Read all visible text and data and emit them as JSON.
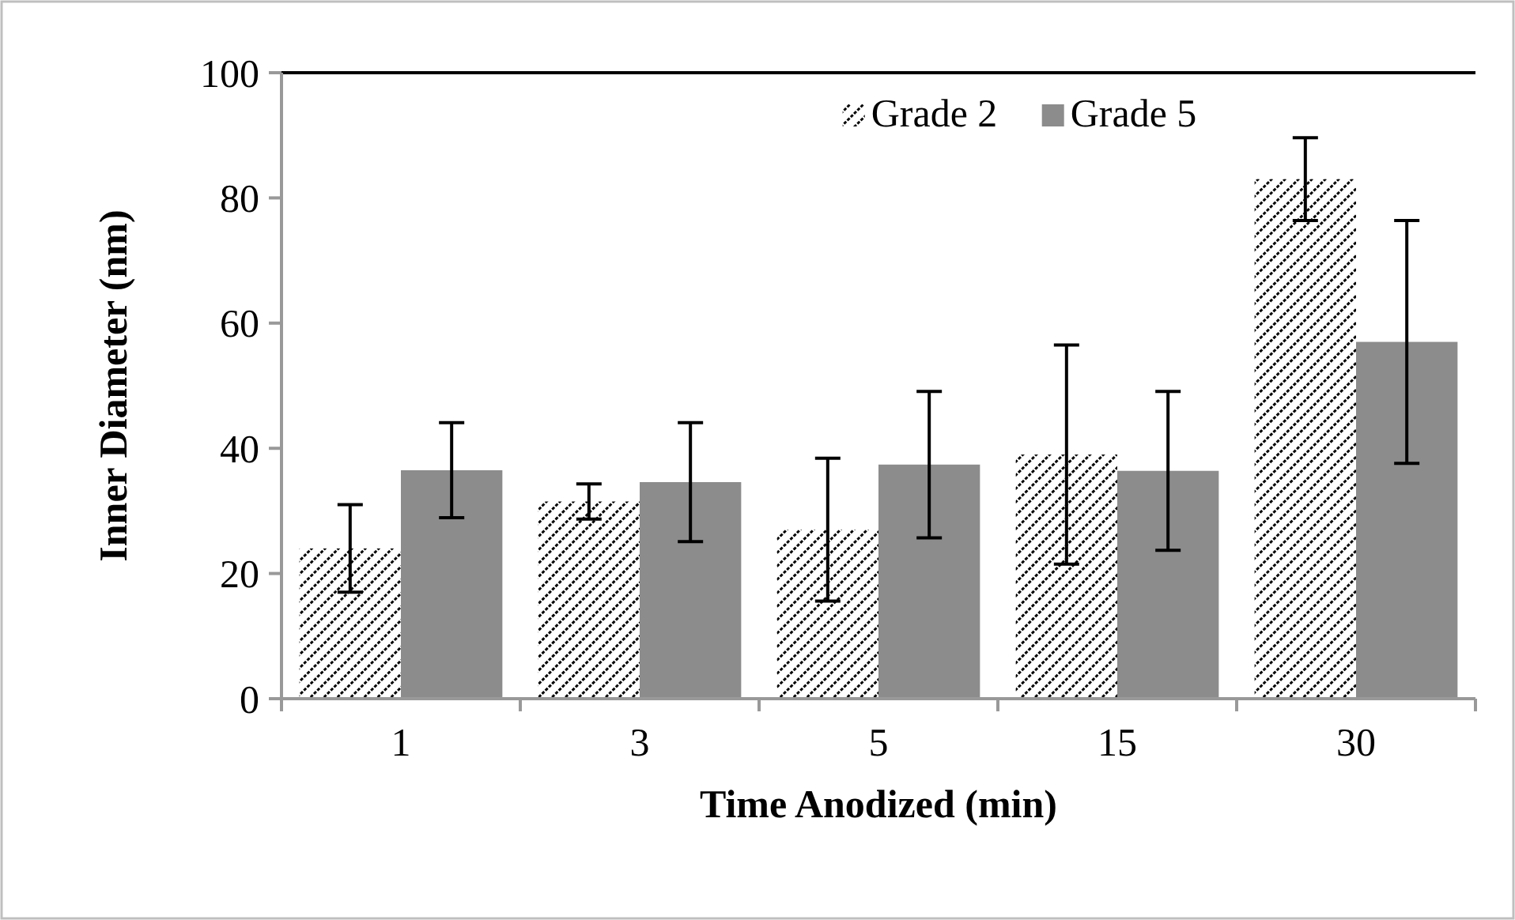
{
  "chart_data": {
    "type": "bar",
    "xlabel": "Time Anodized (min)",
    "ylabel": "Inner Diameter (nm)",
    "categories": [
      "1",
      "3",
      "5",
      "15",
      "30"
    ],
    "ylim": [
      0,
      100
    ],
    "yticks": [
      0,
      20,
      40,
      60,
      80,
      100
    ],
    "grid": false,
    "legend": "top right",
    "series": [
      {
        "name": "Grade 2",
        "color": "#000000",
        "values": [
          24,
          31.5,
          27,
          39,
          83
        ],
        "errors": [
          7,
          2.8,
          11.4,
          17.5,
          6.6
        ]
      },
      {
        "name": "Grade 5",
        "color": "#8c8c8c",
        "values": [
          36.5,
          34.6,
          37.4,
          36.4,
          57
        ],
        "errors": [
          7.6,
          9.5,
          11.7,
          12.7,
          19.4
        ]
      }
    ]
  }
}
